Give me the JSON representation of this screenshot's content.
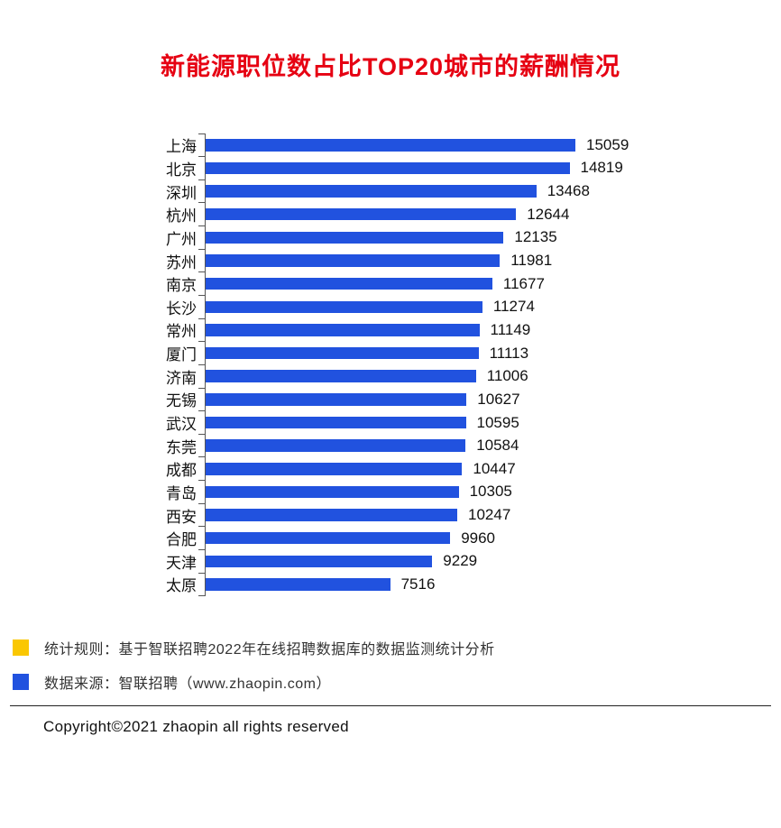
{
  "title": "新能源职位数占比TOP20城市的薪酬情况",
  "title_color": "#e60012",
  "chart_data": {
    "type": "bar",
    "orientation": "horizontal",
    "title": "新能源职位数占比TOP20城市的薪酬情况",
    "categories": [
      "上海",
      "北京",
      "深圳",
      "杭州",
      "广州",
      "苏州",
      "南京",
      "长沙",
      "常州",
      "厦门",
      "济南",
      "无锡",
      "武汉",
      "东莞",
      "成都",
      "青岛",
      "西安",
      "合肥",
      "天津",
      "太原"
    ],
    "values": [
      15059,
      14819,
      13468,
      12644,
      12135,
      11981,
      11677,
      11274,
      11149,
      11113,
      11006,
      10627,
      10595,
      10584,
      10447,
      10305,
      10247,
      9960,
      9229,
      7516
    ],
    "xlabel": "",
    "ylabel": "",
    "xlim": [
      0,
      15059
    ],
    "grid": false,
    "legend": false,
    "bar_color": "#2152df",
    "value_labels_shown": true
  },
  "footnotes": [
    {
      "marker_color": "#fac702",
      "text": "统计规则：基于智联招聘2022年在线招聘数据库的数据监测统计分析"
    },
    {
      "marker_color": "#2152df",
      "text": "数据来源：智联招聘（www.zhaopin.com）"
    }
  ],
  "copyright": "Copyright©2021 zhaopin all rights reserved"
}
